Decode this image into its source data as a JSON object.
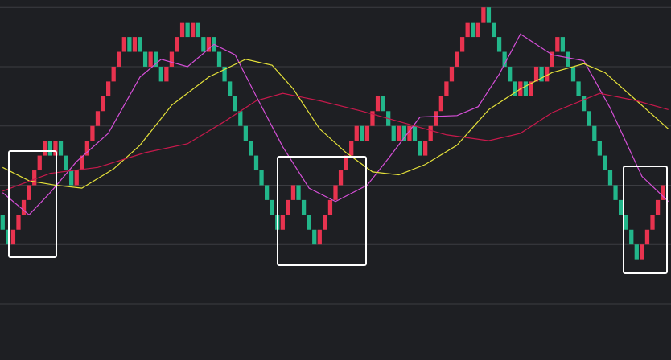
{
  "chart_data": {
    "type": "renko",
    "up_color": "#e8334f",
    "down_color": "#22b68a",
    "background": "#1e1f23",
    "grid": true,
    "xlim": [
      0,
      127
    ],
    "ylim": [
      0.2,
      24.5
    ],
    "yticks": [
      4,
      8,
      12,
      16,
      20,
      24
    ],
    "values": [
      10,
      9,
      8,
      9,
      10,
      11,
      12,
      13,
      14,
      15,
      14,
      15,
      14,
      13,
      12,
      13,
      14,
      15,
      16,
      17,
      18,
      19,
      20,
      21,
      22,
      21,
      22,
      21,
      20,
      21,
      20,
      19,
      20,
      21,
      22,
      23,
      22,
      23,
      22,
      21,
      22,
      21,
      20,
      19,
      18,
      17,
      16,
      15,
      14,
      13,
      12,
      11,
      10,
      9,
      10,
      11,
      12,
      11,
      10,
      9,
      8,
      9,
      10,
      11,
      12,
      13,
      14,
      15,
      16,
      15,
      16,
      17,
      18,
      17,
      16,
      15,
      16,
      15,
      16,
      15,
      14,
      15,
      16,
      17,
      18,
      19,
      20,
      21,
      22,
      23,
      22,
      23,
      24,
      23,
      22,
      21,
      20,
      19,
      18,
      19,
      18,
      19,
      20,
      19,
      20,
      21,
      22,
      21,
      20,
      19,
      18,
      17,
      16,
      15,
      14,
      13,
      12,
      11,
      10,
      9,
      8,
      7,
      8,
      9,
      10,
      11,
      12
    ],
    "lines": [
      {
        "color": "#d64fd8",
        "x": [
          0,
          5,
          9,
          14,
          20,
          26,
          30,
          35,
          40,
          44,
          48,
          53,
          58,
          63,
          69,
          73,
          79,
          86,
          90,
          94,
          98,
          104,
          110,
          115,
          121,
          126
        ],
        "values": [
          11.5,
          10.0,
          11.5,
          13.6,
          15.5,
          19.3,
          20.5,
          20.0,
          21.5,
          20.8,
          18.0,
          14.6,
          11.8,
          10.9,
          12.0,
          13.8,
          16.6,
          16.7,
          17.3,
          19.5,
          22.2,
          20.8,
          20.4,
          17.2,
          12.6,
          10.9
        ]
      },
      {
        "color": "#e6e23a",
        "x": [
          0,
          5,
          10,
          15,
          21,
          26,
          32,
          39,
          46,
          51,
          55,
          60,
          65,
          70,
          75,
          80,
          86,
          92,
          98,
          104,
          110,
          114,
          120,
          126
        ],
        "values": [
          13.2,
          12.3,
          12.0,
          11.8,
          13.1,
          14.7,
          17.4,
          19.3,
          20.5,
          20.1,
          18.5,
          15.8,
          14.2,
          12.9,
          12.7,
          13.4,
          14.7,
          17.1,
          18.5,
          19.6,
          20.2,
          19.6,
          17.7,
          15.8
        ]
      },
      {
        "color": "#c8194c",
        "x": [
          0,
          9,
          18,
          27,
          35,
          42,
          48,
          53,
          60,
          68,
          75,
          84,
          92,
          98,
          104,
          113,
          120,
          126
        ],
        "values": [
          11.6,
          12.8,
          13.2,
          14.2,
          14.8,
          16.3,
          17.7,
          18.2,
          17.7,
          17.0,
          16.3,
          15.4,
          15.0,
          15.5,
          16.9,
          18.2,
          17.7,
          17.1
        ]
      }
    ]
  }
}
